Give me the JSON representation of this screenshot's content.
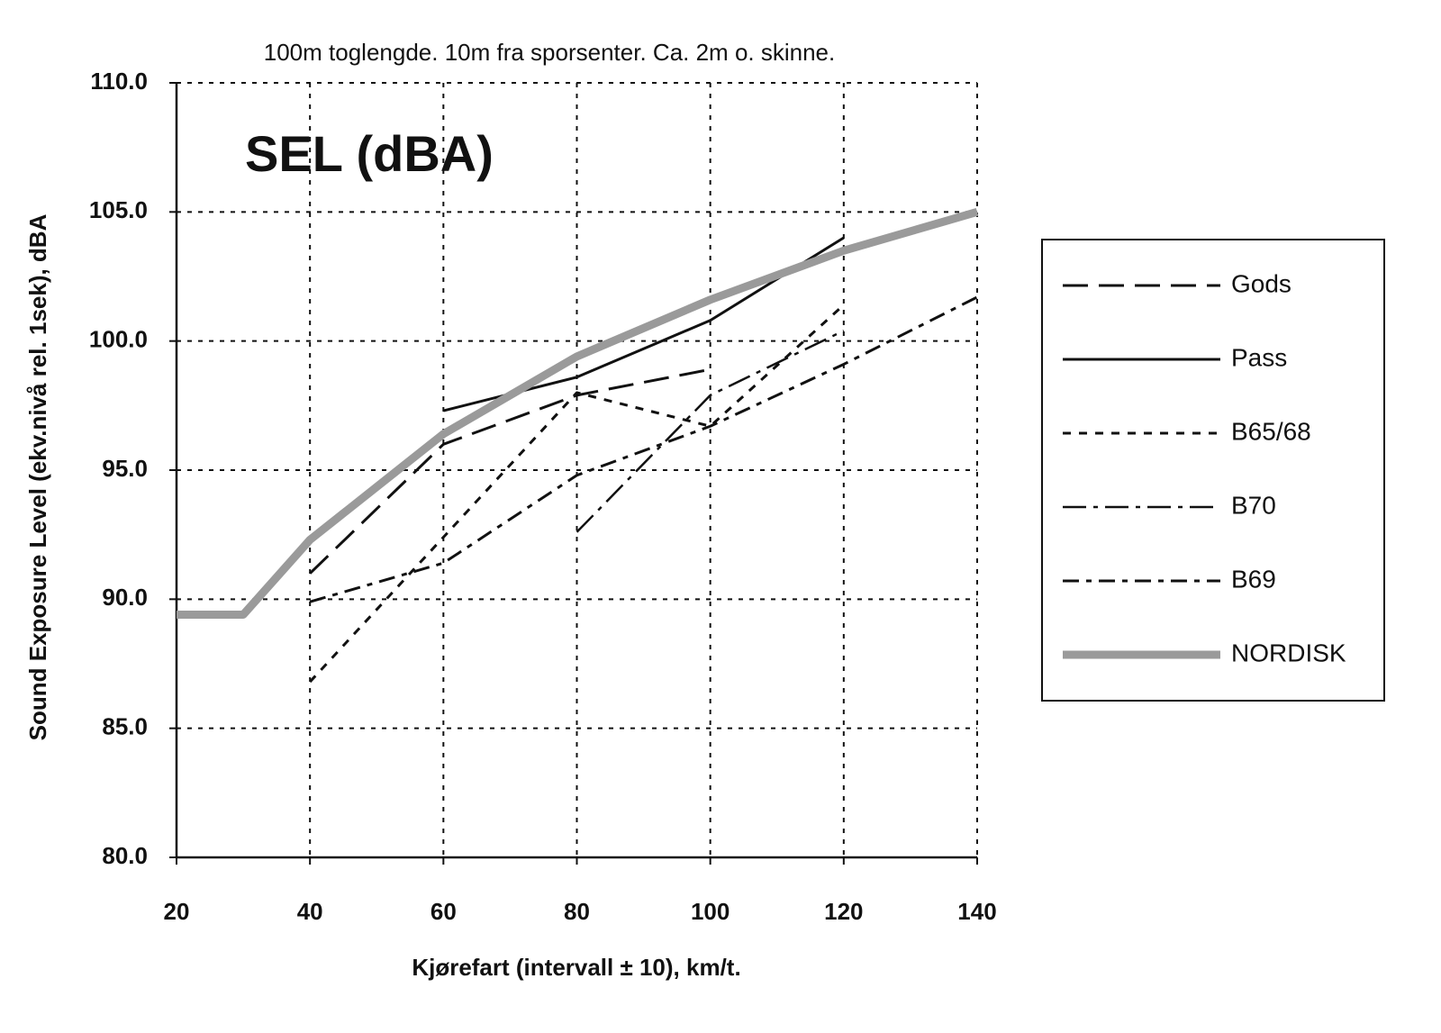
{
  "chart_data": {
    "type": "line",
    "title": "100m toglengde.  10m fra sporsenter.  Ca. 2m o. skinne.",
    "annotation": "SEL (dBA)",
    "x_label": "Kjørefart (intervall ± 10), km/t.",
    "y_label": "Sound Exposure Level (ekv.nivå rel. 1sek), dBA",
    "x": [
      20,
      30,
      40,
      60,
      80,
      100,
      120,
      140
    ],
    "xlim": [
      20,
      140
    ],
    "xticks": [
      20,
      40,
      60,
      80,
      100,
      120,
      140
    ],
    "ylim": [
      80,
      110
    ],
    "yticks": [
      {
        "value": 80,
        "label": "80.0"
      },
      {
        "value": 85,
        "label": "85.0"
      },
      {
        "value": 90,
        "label": "90.0"
      },
      {
        "value": 95,
        "label": "95.0"
      },
      {
        "value": 100,
        "label": "100.0"
      },
      {
        "value": 105,
        "label": "105.0"
      },
      {
        "value": 110,
        "label": "110.0"
      }
    ],
    "grid": true,
    "legend": "right",
    "series": [
      {
        "name": "Gods",
        "color": "#111111",
        "values": [
          null,
          null,
          91.0,
          96.0,
          97.9,
          98.9,
          null,
          null
        ]
      },
      {
        "name": "Pass",
        "color": "#111111",
        "values": [
          null,
          null,
          null,
          97.3,
          98.6,
          100.8,
          104.0,
          null
        ]
      },
      {
        "name": "B65/68",
        "color": "#111111",
        "values": [
          null,
          null,
          86.8,
          92.4,
          98.0,
          96.7,
          101.4,
          null
        ]
      },
      {
        "name": "B70",
        "color": "#111111",
        "values": [
          null,
          null,
          null,
          null,
          92.6,
          97.9,
          100.4,
          null
        ]
      },
      {
        "name": "B69",
        "color": "#111111",
        "values": [
          null,
          null,
          89.9,
          91.4,
          94.8,
          96.7,
          99.1,
          101.7
        ]
      },
      {
        "name": "NORDISK",
        "color": "#9a9a9a",
        "values": [
          89.4,
          89.4,
          92.3,
          96.4,
          99.4,
          101.6,
          103.5,
          105.0
        ]
      }
    ]
  }
}
